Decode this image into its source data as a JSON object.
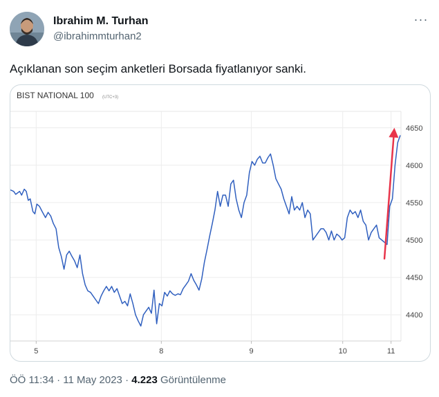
{
  "author": {
    "name": "Ibrahim M. Turhan",
    "handle": "@ibrahimmturhan2"
  },
  "more_label": "···",
  "tweet": {
    "text": "Açıklanan son seçim anketleri Borsada fiyatlanıyor sanki."
  },
  "meta": {
    "time": "ÖÖ 11:34",
    "separator": " · ",
    "date": "11 May 2023",
    "separator2": " · ",
    "views": "4.223",
    "views_label": " Görüntülenme"
  },
  "chart_data": {
    "type": "line",
    "title": "BIST NATIONAL 100",
    "subtitle": "(UTC+3)",
    "xlabel": "",
    "ylabel": "",
    "x_ticks": [
      {
        "x": 5,
        "label": "5"
      },
      {
        "x": 8,
        "label": "8"
      },
      {
        "x": 9,
        "label": "9"
      },
      {
        "x": 10,
        "label": "10"
      },
      {
        "x": 11,
        "label": "11"
      }
    ],
    "y_ticks": [
      4400,
      4450,
      4500,
      4550,
      4600,
      4650
    ],
    "ylim": [
      4365,
      4672
    ],
    "xlim": [
      0,
      118
    ],
    "grid": true,
    "line_color": "#2f5fbf",
    "arrow_color": "#e8344a",
    "arrow": {
      "from": [
        113,
        4475
      ],
      "to": [
        116,
        4650
      ]
    },
    "series": [
      {
        "values": [
          [
            0,
            4567
          ],
          [
            1,
            4565
          ],
          [
            1.6,
            4561
          ],
          [
            2.2,
            4563
          ],
          [
            2.8,
            4565
          ],
          [
            3.4,
            4560
          ],
          [
            4.2,
            4568
          ],
          [
            4.8,
            4565
          ],
          [
            5.4,
            4553
          ],
          [
            6,
            4555
          ],
          [
            6.8,
            4538
          ],
          [
            7.4,
            4535
          ],
          [
            8,
            4548
          ],
          [
            8.8,
            4545
          ],
          [
            9.6,
            4538
          ],
          [
            10.6,
            4530
          ],
          [
            11.4,
            4537
          ],
          [
            12.2,
            4532
          ],
          [
            13,
            4522
          ],
          [
            13.8,
            4515
          ],
          [
            14.6,
            4490
          ],
          [
            15.4,
            4478
          ],
          [
            16.2,
            4461
          ],
          [
            17,
            4480
          ],
          [
            17.8,
            4485
          ],
          [
            18.6,
            4478
          ],
          [
            19.4,
            4472
          ],
          [
            20.2,
            4463
          ],
          [
            21,
            4480
          ],
          [
            21.8,
            4455
          ],
          [
            22.6,
            4440
          ],
          [
            23.4,
            4432
          ],
          [
            24.2,
            4430
          ],
          [
            25,
            4425
          ],
          [
            25.8,
            4420
          ],
          [
            26.6,
            4415
          ],
          [
            27.4,
            4425
          ],
          [
            28.2,
            4432
          ],
          [
            29,
            4438
          ],
          [
            29.8,
            4432
          ],
          [
            30.6,
            4438
          ],
          [
            31.4,
            4430
          ],
          [
            32.2,
            4435
          ],
          [
            33,
            4425
          ],
          [
            33.8,
            4415
          ],
          [
            34.6,
            4418
          ],
          [
            35.4,
            4412
          ],
          [
            36.2,
            4428
          ],
          [
            37,
            4415
          ],
          [
            37.8,
            4400
          ],
          [
            38.6,
            4392
          ],
          [
            39.4,
            4385
          ],
          [
            40.2,
            4400
          ],
          [
            41,
            4405
          ],
          [
            41.8,
            4410
          ],
          [
            42.6,
            4402
          ],
          [
            43.4,
            4433
          ],
          [
            44.2,
            4388
          ],
          [
            45,
            4415
          ],
          [
            45.8,
            4412
          ],
          [
            46.6,
            4430
          ],
          [
            47.4,
            4425
          ],
          [
            48.2,
            4432
          ],
          [
            49,
            4428
          ],
          [
            49.8,
            4426
          ],
          [
            50.6,
            4428
          ],
          [
            51.4,
            4427
          ],
          [
            52.2,
            4435
          ],
          [
            53,
            4440
          ],
          [
            53.8,
            4445
          ],
          [
            54.6,
            4455
          ],
          [
            55.4,
            4446
          ],
          [
            56.2,
            4440
          ],
          [
            57,
            4433
          ],
          [
            57.8,
            4448
          ],
          [
            58.6,
            4470
          ],
          [
            59.4,
            4487
          ],
          [
            60.2,
            4505
          ],
          [
            61,
            4522
          ],
          [
            61.8,
            4540
          ],
          [
            62.6,
            4565
          ],
          [
            63.4,
            4545
          ],
          [
            64.2,
            4560
          ],
          [
            65,
            4560
          ],
          [
            65.8,
            4545
          ],
          [
            66.6,
            4575
          ],
          [
            67.4,
            4580
          ],
          [
            68.2,
            4555
          ],
          [
            69,
            4540
          ],
          [
            69.8,
            4530
          ],
          [
            70.6,
            4550
          ],
          [
            71.4,
            4560
          ],
          [
            72.2,
            4590
          ],
          [
            73,
            4605
          ],
          [
            73.8,
            4600
          ],
          [
            74.6,
            4608
          ],
          [
            75.4,
            4612
          ],
          [
            76.2,
            4603
          ],
          [
            77,
            4603
          ],
          [
            77.8,
            4610
          ],
          [
            78.6,
            4615
          ],
          [
            79.4,
            4600
          ],
          [
            80.2,
            4582
          ],
          [
            81,
            4575
          ],
          [
            81.8,
            4568
          ],
          [
            82.6,
            4555
          ],
          [
            83.4,
            4545
          ],
          [
            84.2,
            4535
          ],
          [
            85,
            4558
          ],
          [
            85.8,
            4540
          ],
          [
            86.6,
            4545
          ],
          [
            87.4,
            4540
          ],
          [
            88.2,
            4550
          ],
          [
            89,
            4530
          ],
          [
            89.8,
            4540
          ],
          [
            90.6,
            4535
          ],
          [
            91.4,
            4500
          ],
          [
            92.2,
            4505
          ],
          [
            93,
            4510
          ],
          [
            93.8,
            4515
          ],
          [
            94.6,
            4515
          ],
          [
            95.4,
            4510
          ],
          [
            96.2,
            4500
          ],
          [
            97,
            4512
          ],
          [
            97.8,
            4500
          ],
          [
            98.6,
            4508
          ],
          [
            99.4,
            4505
          ],
          [
            100.2,
            4500
          ],
          [
            101,
            4503
          ],
          [
            101.8,
            4530
          ],
          [
            102.6,
            4540
          ],
          [
            103.4,
            4535
          ],
          [
            104.2,
            4538
          ],
          [
            105,
            4530
          ],
          [
            105.8,
            4540
          ],
          [
            106.6,
            4525
          ],
          [
            107.4,
            4520
          ],
          [
            108.2,
            4500
          ],
          [
            109,
            4510
          ],
          [
            109.8,
            4515
          ],
          [
            110.6,
            4520
          ],
          [
            111.4,
            4503
          ],
          [
            112.2,
            4500
          ],
          [
            113,
            4497
          ],
          [
            113.8,
            4494
          ],
          [
            114.6,
            4545
          ],
          [
            115.4,
            4555
          ],
          [
            116.2,
            4600
          ],
          [
            117,
            4630
          ],
          [
            117.8,
            4640
          ]
        ]
      }
    ]
  }
}
